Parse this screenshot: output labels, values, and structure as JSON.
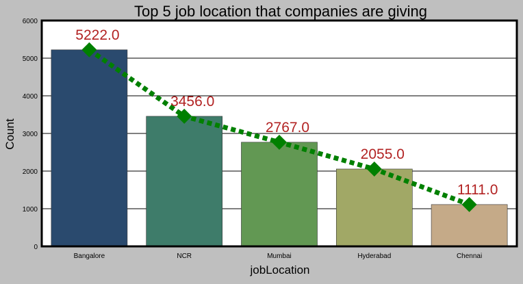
{
  "chart_data": {
    "type": "bar",
    "title": "Top 5 job location that companies are giving",
    "xlabel": "jobLocation",
    "ylabel": "Count",
    "categories": [
      "Bangalore",
      "NCR",
      "Mumbai",
      "Hyderabad",
      "Chennai"
    ],
    "values": [
      5222,
      3456,
      2767,
      2055,
      1111
    ],
    "value_labels": [
      "5222.0",
      "3456.0",
      "2767.0",
      "2055.0",
      "1111.0"
    ],
    "bar_colors": [
      "#2a4a6e",
      "#3e7c6a",
      "#629853",
      "#a1a866",
      "#c5aa88"
    ],
    "overlay_line": {
      "style": "dotted",
      "marker": "diamond",
      "color": "#008000"
    },
    "label_color": "#b22222",
    "ylim": [
      0,
      6000
    ],
    "yticks": [
      0,
      1000,
      2000,
      3000,
      4000,
      5000,
      6000
    ],
    "grid": "horizontal",
    "legend": "none"
  }
}
